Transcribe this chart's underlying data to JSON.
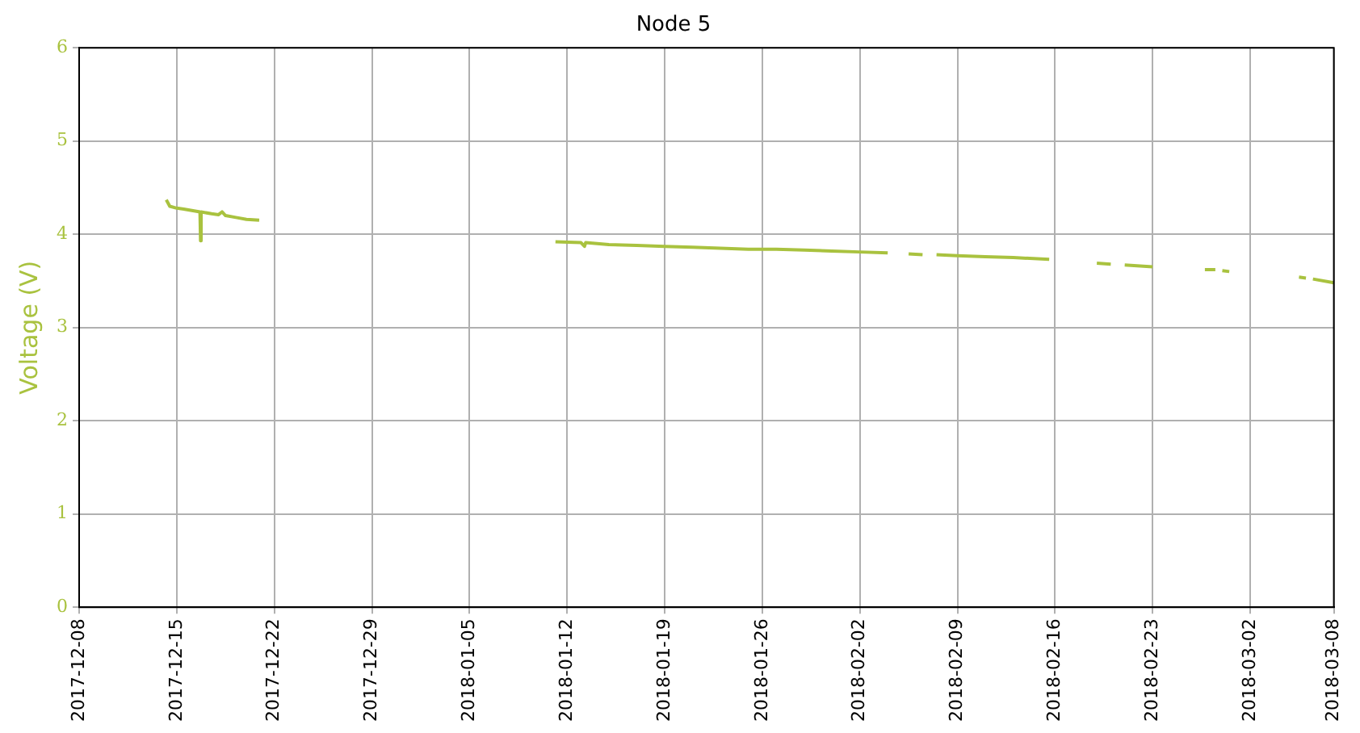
{
  "chart_data": {
    "type": "line",
    "title": "Node 5",
    "ylabel": "Voltage (V)",
    "grid": true,
    "legend": false,
    "marker": "none",
    "line_style": "solid",
    "xlim": [
      "2017-12-08",
      "2018-03-08"
    ],
    "xticks": [
      "2017-12-08",
      "2017-12-15",
      "2017-12-22",
      "2017-12-29",
      "2018-01-05",
      "2018-01-12",
      "2018-01-19",
      "2018-01-26",
      "2018-02-02",
      "2018-02-09",
      "2018-02-16",
      "2018-02-23",
      "2018-03-02",
      "2018-03-08"
    ],
    "ylim": [
      0,
      6
    ],
    "yticks": [
      0,
      1,
      2,
      3,
      4,
      5,
      6
    ],
    "series": [
      {
        "color": "#a9c23f",
        "x": [
          "2017-12-14T06:00",
          "2017-12-14T12:00",
          "2017-12-15T00:00",
          "2017-12-15T12:00",
          "2017-12-16T06:00",
          "2017-12-16T16:00",
          "2017-12-16T17:00",
          "2017-12-16T18:00",
          "2017-12-17T12:00",
          "2017-12-18T00:00",
          "2017-12-18T06:00",
          "2017-12-18T12:00",
          "2017-12-19T06:00",
          "2017-12-20T00:00",
          "2017-12-20T22:00",
          "2017-12-30T00:00",
          "2018-01-11T04:00",
          "2018-01-13T00:00",
          "2018-01-13T06:00",
          "2018-01-13T08:00",
          "2018-01-15T00:00",
          "2018-01-17T00:00",
          "2018-01-19T00:00",
          "2018-01-21T00:00",
          "2018-01-23T00:00",
          "2018-01-25T00:00",
          "2018-01-27T00:00",
          "2018-01-29T00:00",
          "2018-01-31T00:00",
          "2018-02-02T00:00",
          "2018-02-04T00:00",
          "2018-02-04T12:00",
          "2018-02-05T12:00",
          "2018-02-06T12:00",
          "2018-02-07T00:00",
          "2018-02-07T12:00",
          "2018-02-09T00:00",
          "2018-02-11T00:00",
          "2018-02-13T00:00",
          "2018-02-15T14:00",
          "2018-02-17T00:00",
          "2018-02-19T00:00",
          "2018-02-20T00:00",
          "2018-02-20T12:00",
          "2018-02-21T00:00",
          "2018-02-23T00:00",
          "2018-02-25T00:00",
          "2018-02-26T18:00",
          "2018-02-27T12:00",
          "2018-02-27T18:00",
          "2018-02-28T00:00",
          "2018-02-28T12:00",
          "2018-03-03T00:00",
          "2018-03-05T12:00",
          "2018-03-06T00:00",
          "2018-03-06T06:00",
          "2018-03-06T12:00",
          "2018-03-08T00:00"
        ],
        "values": [
          4.37,
          4.3,
          4.28,
          4.27,
          4.25,
          4.24,
          3.93,
          4.24,
          4.22,
          4.21,
          4.24,
          4.2,
          4.18,
          4.16,
          4.15,
          null,
          3.92,
          3.91,
          3.87,
          3.91,
          3.89,
          3.88,
          3.87,
          3.86,
          3.85,
          3.84,
          3.84,
          3.83,
          3.82,
          3.81,
          3.8,
          null,
          3.79,
          3.78,
          null,
          3.78,
          3.77,
          3.76,
          3.75,
          3.73,
          null,
          3.69,
          3.68,
          null,
          3.67,
          3.65,
          null,
          3.62,
          3.62,
          null,
          3.61,
          3.6,
          null,
          3.54,
          3.53,
          null,
          3.52,
          3.48
        ]
      }
    ]
  }
}
